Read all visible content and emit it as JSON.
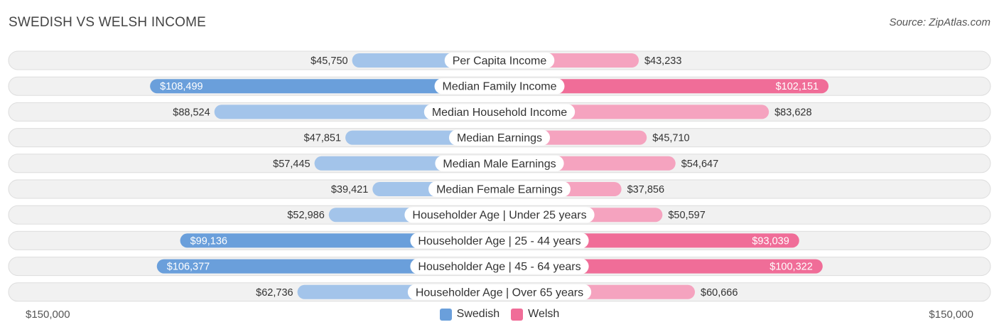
{
  "title": "SWEDISH VS WELSH INCOME",
  "source": "Source: ZipAtlas.com",
  "axis": {
    "left_label": "$150,000",
    "right_label": "$150,000"
  },
  "legend": {
    "swedish": "Swedish",
    "welsh": "Welsh"
  },
  "colors": {
    "swedish_strong": "#6a9fdb",
    "swedish_light": "#a3c4ea",
    "welsh_strong": "#f06d98",
    "welsh_light": "#f5a3bf",
    "row_bg": "#f1f1f1",
    "row_border": "#dddddd"
  },
  "chart_data": {
    "type": "bar",
    "orientation": "horizontal-diverging",
    "title": "SWEDISH VS WELSH INCOME",
    "xlim": [
      -150000,
      150000
    ],
    "categories": [
      "Per Capita Income",
      "Median Family Income",
      "Median Household Income",
      "Median Earnings",
      "Median Male Earnings",
      "Median Female Earnings",
      "Householder Age | Under 25 years",
      "Householder Age | 25 - 44 years",
      "Householder Age | 45 - 64 years",
      "Householder Age | Over 65 years"
    ],
    "series": [
      {
        "name": "Swedish",
        "values": [
          45750,
          108499,
          88524,
          47851,
          57445,
          39421,
          52986,
          99136,
          106377,
          62736
        ],
        "labels": [
          "$45,750",
          "$108,499",
          "$88,524",
          "$47,851",
          "$57,445",
          "$39,421",
          "$52,986",
          "$99,136",
          "$106,377",
          "$62,736"
        ]
      },
      {
        "name": "Welsh",
        "values": [
          43233,
          102151,
          83628,
          45710,
          54647,
          37856,
          50597,
          93039,
          100322,
          60666
        ],
        "labels": [
          "$43,233",
          "$102,151",
          "$83,628",
          "$45,710",
          "$54,647",
          "$37,856",
          "$50,597",
          "$93,039",
          "$100,322",
          "$60,666"
        ]
      }
    ],
    "legend": [
      "Swedish",
      "Welsh"
    ],
    "legend_position": "bottom-center"
  }
}
